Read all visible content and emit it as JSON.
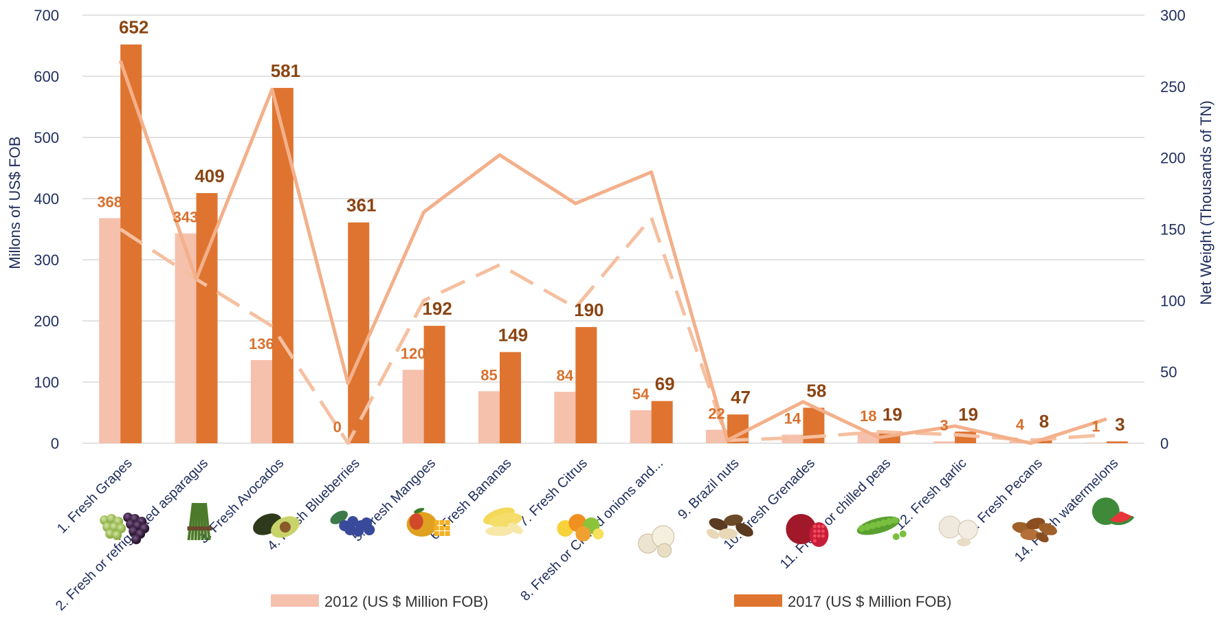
{
  "chart_data": {
    "type": "bar",
    "categories": [
      "1. Fresh Grapes",
      "2. Fresh or refrigerated asparagus",
      "3. Fresh Avocados",
      "4. Fresh Blueberries",
      "5. Fresh Mangoes",
      "6. Fresh Bananas",
      "7. Fresh Citrus",
      "8. Fresh or Chilled onions and...",
      "9. Brazil nuts",
      "10. Fresh Grenades",
      "11. Fresh or chilled peas",
      "12. Fresh garlic",
      "13. Fresh Pecans",
      "14. Fresh watermelons"
    ],
    "category_icons": [
      "grapes-icon",
      "asparagus-icon",
      "avocado-icon",
      "blueberries-icon",
      "mango-icon",
      "bananas-icon",
      "citrus-icon",
      "onions-icon",
      "brazil-nuts-icon",
      "pomegranate-icon",
      "peas-icon",
      "garlic-icon",
      "pecans-icon",
      "watermelon-icon"
    ],
    "series": [
      {
        "name": "2012  (US $ Million FOB)",
        "kind": "bar",
        "axis": "left",
        "color": "#f5c0ac",
        "values": [
          368,
          343,
          136,
          0,
          120,
          85,
          84,
          54,
          22,
          14,
          18,
          3,
          4,
          1
        ]
      },
      {
        "name": "2017  (US $ Million FOB)",
        "kind": "bar",
        "axis": "left",
        "color": "#df7430",
        "values": [
          652,
          409,
          581,
          361,
          192,
          149,
          190,
          69,
          47,
          58,
          19,
          19,
          8,
          3
        ]
      },
      {
        "kind": "line",
        "style": "dashed",
        "axis": "right",
        "color": "#f5c0a0",
        "values": [
          150,
          115,
          82,
          0,
          100,
          125,
          95,
          158,
          2,
          4,
          8,
          6,
          2,
          6
        ]
      },
      {
        "kind": "line",
        "style": "solid",
        "axis": "right",
        "color": "#f3b08a",
        "values": [
          268,
          115,
          248,
          42,
          162,
          202,
          168,
          190,
          2,
          29,
          4,
          12,
          0,
          17
        ]
      }
    ],
    "ylabel": "Millons of US$ FOB",
    "y2label": "Net Weight  (Thousands of  TN)",
    "ylim": [
      0,
      700
    ],
    "y2lim": [
      0,
      300
    ],
    "yticks": [
      0,
      100,
      200,
      300,
      400,
      500,
      600,
      700
    ],
    "y2ticks": [
      0,
      50,
      100,
      150,
      200,
      250,
      300
    ],
    "grid": true,
    "legend_position": "bottom"
  }
}
